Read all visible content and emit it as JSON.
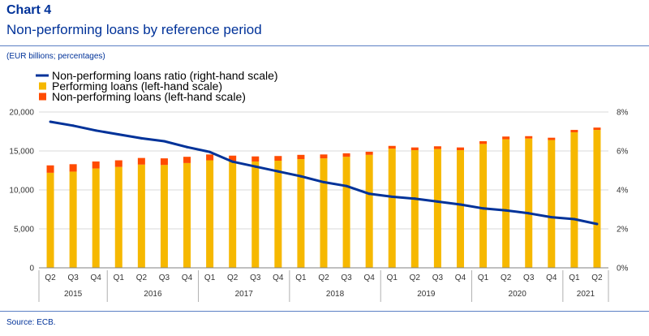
{
  "header": {
    "chart_number": "Chart 4",
    "title": "Non-performing loans by reference period",
    "units": "(EUR billions; percentages)",
    "source": "Source: ECB."
  },
  "colors": {
    "performing": "#f6b800",
    "npl": "#ff4b00",
    "ratio": "#003299",
    "grid": "#d9d9d9",
    "rule": "#5b7fc4"
  },
  "chart_data": {
    "type": "bar",
    "stacked": true,
    "categories": [
      "Q2",
      "Q3",
      "Q4",
      "Q1",
      "Q2",
      "Q3",
      "Q4",
      "Q1",
      "Q2",
      "Q3",
      "Q4",
      "Q1",
      "Q2",
      "Q3",
      "Q4",
      "Q1",
      "Q2",
      "Q3",
      "Q4",
      "Q1",
      "Q2",
      "Q3",
      "Q4",
      "Q1",
      "Q2"
    ],
    "year_groups": [
      {
        "label": "2015",
        "count": 3
      },
      {
        "label": "2016",
        "count": 4
      },
      {
        "label": "2017",
        "count": 4
      },
      {
        "label": "2018",
        "count": 4
      },
      {
        "label": "2019",
        "count": 4
      },
      {
        "label": "2020",
        "count": 4
      },
      {
        "label": "2021",
        "count": 2
      }
    ],
    "series": [
      {
        "name": "Performing loans (left-hand scale)",
        "axis": "left",
        "kind": "bar",
        "values": [
          12200,
          12350,
          12750,
          12950,
          13250,
          13200,
          13450,
          13800,
          13700,
          13650,
          13750,
          13950,
          14050,
          14250,
          14500,
          15300,
          15100,
          15250,
          15100,
          15900,
          16500,
          16600,
          16400,
          17400,
          17700
        ]
      },
      {
        "name": "Non-performing loans (left-hand scale)",
        "axis": "left",
        "kind": "bar",
        "values": [
          950,
          950,
          900,
          850,
          850,
          850,
          800,
          750,
          700,
          650,
          600,
          550,
          500,
          450,
          400,
          350,
          350,
          350,
          350,
          350,
          350,
          300,
          300,
          300,
          300
        ]
      },
      {
        "name": "Non-performing loans ratio (right-hand scale)",
        "axis": "right",
        "kind": "line",
        "values": [
          7.5,
          7.3,
          7.05,
          6.85,
          6.65,
          6.5,
          6.2,
          5.95,
          5.45,
          5.2,
          4.95,
          4.7,
          4.4,
          4.2,
          3.8,
          3.65,
          3.55,
          3.4,
          3.25,
          3.05,
          2.95,
          2.8,
          2.6,
          2.5,
          2.25
        ]
      }
    ],
    "y_left": {
      "min": 0,
      "max": 20000,
      "ticks": [
        "0",
        "5,000",
        "10,000",
        "15,000",
        "20,000"
      ]
    },
    "y_right": {
      "min": 0,
      "max": 8,
      "ticks": [
        "0%",
        "2%",
        "4%",
        "6%",
        "8%"
      ]
    },
    "grid": true,
    "legend_position": "top-left"
  }
}
